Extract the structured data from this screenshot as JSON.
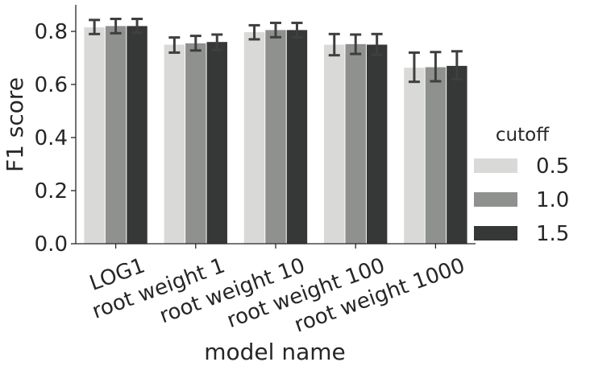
{
  "chart_data": {
    "type": "bar",
    "xlabel": "model name",
    "ylabel": "F1 score",
    "ylim": [
      0.0,
      0.9
    ],
    "yticks": [
      0.0,
      0.2,
      0.4,
      0.6,
      0.8
    ],
    "ytick_labels": [
      "0.0",
      "0.2",
      "0.4",
      "0.6",
      "0.8"
    ],
    "grid": false,
    "categories": [
      "LOG1",
      "root weight 1",
      "root weight 10",
      "root weight 100",
      "root weight 1000"
    ],
    "legend": {
      "title": "cutoff",
      "placement": "right"
    },
    "series": [
      {
        "name": "0.5",
        "color": "#d9dad8",
        "values": [
          0.815,
          0.75,
          0.797,
          0.75,
          0.663
        ],
        "err_low": [
          0.79,
          0.72,
          0.77,
          0.71,
          0.61
        ],
        "err_high": [
          0.843,
          0.777,
          0.823,
          0.79,
          0.72
        ]
      },
      {
        "name": "1.0",
        "color": "#8f918e",
        "values": [
          0.82,
          0.755,
          0.805,
          0.752,
          0.665
        ],
        "err_low": [
          0.793,
          0.728,
          0.778,
          0.715,
          0.612
        ],
        "err_high": [
          0.847,
          0.783,
          0.832,
          0.788,
          0.722
        ]
      },
      {
        "name": "1.5",
        "color": "#363837",
        "values": [
          0.82,
          0.76,
          0.805,
          0.75,
          0.67
        ],
        "err_low": [
          0.795,
          0.73,
          0.778,
          0.712,
          0.62
        ],
        "err_high": [
          0.847,
          0.788,
          0.832,
          0.79,
          0.725
        ]
      }
    ]
  }
}
